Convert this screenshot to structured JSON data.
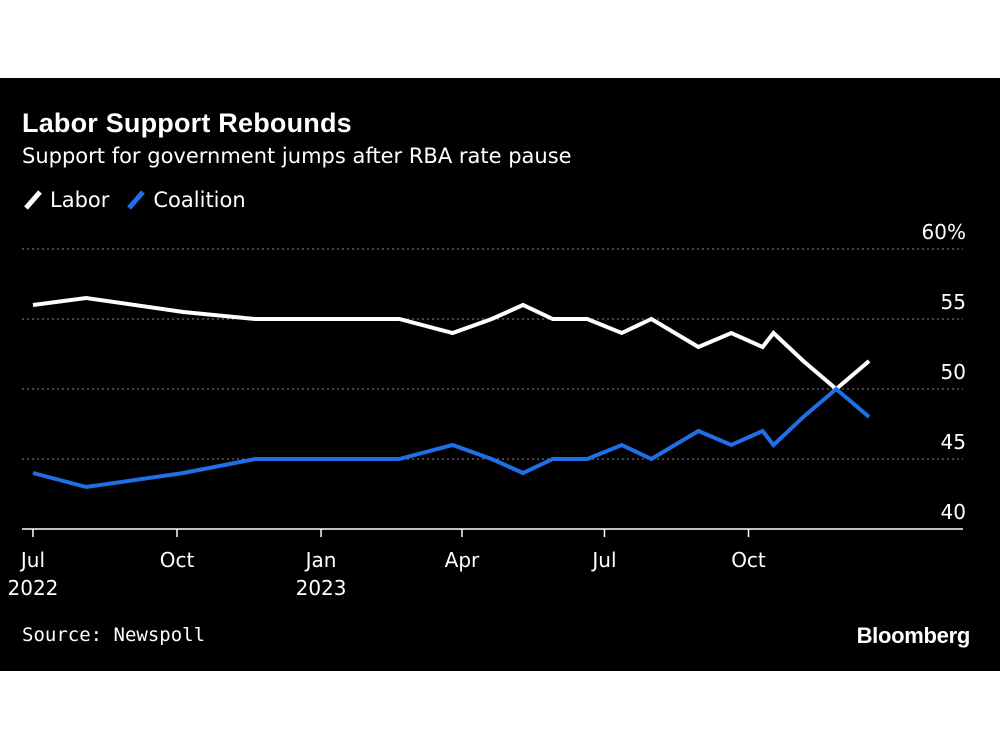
{
  "title": "Labor Support Rebounds",
  "subtitle": "Support for government jumps after RBA rate pause",
  "source": "Source: Newspoll",
  "brand": "Bloomberg",
  "colors": {
    "background": "#000000",
    "labor": "#ffffff",
    "coalition": "#1f6fe6",
    "grid": "#8a8a8a"
  },
  "chart_data": {
    "type": "line",
    "title": "Labor Support Rebounds",
    "subtitle": "Support for government jumps after RBA rate pause",
    "xlabel": "",
    "ylabel": "",
    "ylim": [
      40,
      60
    ],
    "xlim": [
      "2022-06-24",
      "2024-02-15"
    ],
    "y_ticks": [
      {
        "value": 60,
        "label": "60%"
      },
      {
        "value": 55,
        "label": "55"
      },
      {
        "value": 50,
        "label": "50"
      },
      {
        "value": 45,
        "label": "45"
      },
      {
        "value": 40,
        "label": "40"
      }
    ],
    "x_ticks": [
      {
        "date": "2022-07-01",
        "label": "Jul",
        "sublabel": "2022"
      },
      {
        "date": "2022-10-01",
        "label": "Oct",
        "sublabel": ""
      },
      {
        "date": "2023-01-01",
        "label": "Jan",
        "sublabel": "2023"
      },
      {
        "date": "2023-04-01",
        "label": "Apr",
        "sublabel": ""
      },
      {
        "date": "2023-07-01",
        "label": "Jul",
        "sublabel": ""
      },
      {
        "date": "2023-10-01",
        "label": "Oct",
        "sublabel": ""
      }
    ],
    "grid": true,
    "legend_position": "top-left",
    "x": [
      "2022-07-01",
      "2022-08-04",
      "2022-10-05",
      "2022-11-20",
      "2023-01-05",
      "2023-02-20",
      "2023-03-26",
      "2023-04-20",
      "2023-05-10",
      "2023-05-29",
      "2023-06-20",
      "2023-07-12",
      "2023-07-31",
      "2023-08-30",
      "2023-09-20",
      "2023-10-10",
      "2023-10-17",
      "2023-11-05",
      "2023-11-26",
      "2023-12-17"
    ],
    "series": [
      {
        "name": "Labor",
        "color": "#ffffff",
        "values": [
          56,
          56.5,
          55.5,
          55,
          55,
          55,
          54,
          55,
          56,
          55,
          55,
          54,
          55,
          53,
          54,
          53,
          54,
          52,
          50,
          52
        ]
      },
      {
        "name": "Coalition",
        "color": "#1f6fe6",
        "values": [
          44,
          43,
          44,
          45,
          45,
          45,
          46,
          45,
          44,
          45,
          45,
          46,
          45,
          47,
          46,
          47,
          46,
          48,
          50,
          48
        ]
      }
    ]
  }
}
